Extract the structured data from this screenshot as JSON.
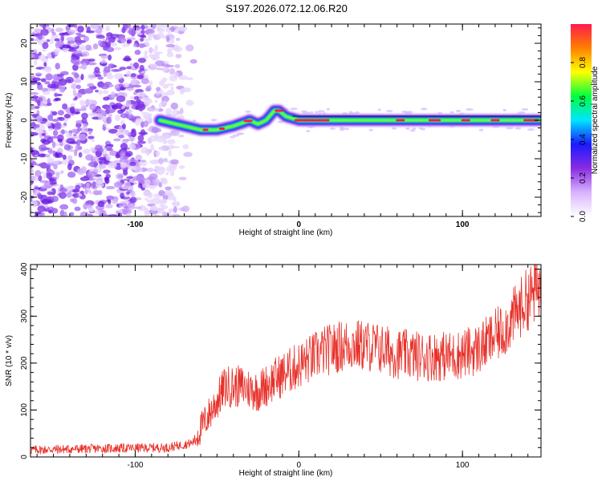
{
  "title": "S197.2026.072.12.06.R20",
  "chart_data": [
    {
      "type": "heatmap",
      "xlabel": "Height of straight line (km)",
      "ylabel": "Frequency (Hz)",
      "xlim": [
        -164,
        148
      ],
      "ylim": [
        -25,
        25
      ],
      "x_ticks": [
        -100,
        0,
        100
      ],
      "y_ticks": [
        -20,
        -10,
        0,
        10,
        20
      ],
      "colorbar": {
        "label": "Normalized spectral amplitude",
        "range": [
          0,
          1
        ],
        "ticks": [
          0.0,
          0.2,
          0.4,
          0.6,
          0.8
        ],
        "stops": [
          "#ffffff",
          "#d9b3ff",
          "#8a2be2",
          "#1a1aff",
          "#00e5ff",
          "#00ff40",
          "#ffff00",
          "#ff8000",
          "#ff1a4d"
        ]
      },
      "frequency_track": {
        "x": [
          -85,
          -70,
          -60,
          -50,
          -40,
          -30,
          -25,
          -20,
          -15,
          -12,
          -8,
          -4,
          0,
          20,
          148
        ],
        "freq": [
          0.0,
          -1.5,
          -2.5,
          -2.5,
          -1.5,
          0.0,
          -1.0,
          0.0,
          2.5,
          2.5,
          1.0,
          0.5,
          0.0,
          0.0,
          0.0
        ]
      },
      "noise_region": {
        "x": [
          -164,
          -72
        ],
        "freq": [
          -25,
          25
        ]
      }
    },
    {
      "type": "line",
      "xlabel": "Height of straight line (km)",
      "ylabel": "SNR (10 * v/v)",
      "xlim": [
        -164,
        148
      ],
      "ylim": [
        0,
        410
      ],
      "x_ticks": [
        -100,
        0,
        100
      ],
      "y_ticks": [
        0,
        100,
        200,
        300,
        400
      ],
      "series": [
        {
          "name": "SNR",
          "color": "#e8312a",
          "trend_x": [
            -164,
            -120,
            -80,
            -65,
            -55,
            -45,
            -35,
            -25,
            -15,
            0,
            15,
            30,
            45,
            60,
            75,
            95,
            110,
            125,
            138,
            148
          ],
          "trend_y": [
            15,
            18,
            20,
            30,
            90,
            150,
            150,
            140,
            165,
            195,
            225,
            240,
            235,
            220,
            215,
            215,
            230,
            270,
            330,
            365
          ],
          "noise_amplitude": 28
        }
      ]
    }
  ]
}
